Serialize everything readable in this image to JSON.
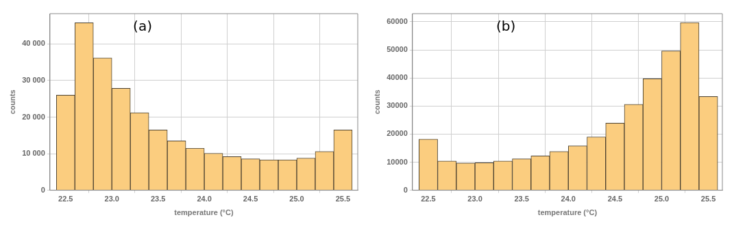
{
  "chart_data": [
    {
      "type": "histogram",
      "annotations": [
        "(a)"
      ],
      "xlabel": "temperature (°C)",
      "ylabel": "counts",
      "color": "#fbcd7f",
      "bins": [
        22.4,
        22.6,
        22.8,
        23.0,
        23.2,
        23.4,
        23.6,
        23.8,
        24.0,
        24.2,
        24.4,
        24.6,
        24.8,
        25.0,
        25.2,
        25.4,
        25.6
      ],
      "values": [
        26000,
        45800,
        36200,
        27900,
        21200,
        16500,
        13500,
        11500,
        10100,
        9200,
        8600,
        8300,
        8300,
        8800,
        10600,
        16500
      ],
      "xlim": [
        22.33,
        25.66
      ],
      "xticks": [
        22.5,
        {
          "value": 23,
          "label": "23.0"
        },
        23.5,
        {
          "value": 24,
          "label": "24.0"
        },
        24.5,
        {
          "value": 25,
          "label": "25.0"
        },
        25.5
      ],
      "ylim": [
        0,
        48300
      ],
      "yticks": [
        0,
        {
          "value": 10000,
          "label": "10 000"
        },
        {
          "value": 20000,
          "label": "20 000"
        },
        {
          "value": 30000,
          "label": "30 000"
        },
        {
          "value": 40000,
          "label": "40 000"
        }
      ],
      "grid": true
    },
    {
      "type": "histogram",
      "annotations": [
        "(b)"
      ],
      "xlabel": "temperature (°C)",
      "ylabel": "counts",
      "color": "#fbcd7f",
      "bins": [
        22.4,
        22.6,
        22.8,
        23.0,
        23.2,
        23.4,
        23.6,
        23.8,
        24.0,
        24.2,
        24.4,
        24.6,
        24.8,
        25.0,
        25.2,
        25.4,
        25.6
      ],
      "values": [
        18200,
        10400,
        9700,
        9800,
        10400,
        11200,
        12200,
        13800,
        15800,
        19000,
        23900,
        30600,
        39700,
        49600,
        59700,
        33400
      ],
      "xlim": [
        22.33,
        25.65
      ],
      "xticks": [
        22.5,
        {
          "value": 23,
          "label": "23.0"
        },
        23.5,
        {
          "value": 24,
          "label": "24.0"
        },
        24.5,
        {
          "value": 25,
          "label": "25.0"
        },
        25.5
      ],
      "ylim": [
        0,
        62900
      ],
      "yticks": [
        0,
        10000,
        20000,
        30000,
        40000,
        50000,
        60000
      ],
      "grid": true
    }
  ]
}
